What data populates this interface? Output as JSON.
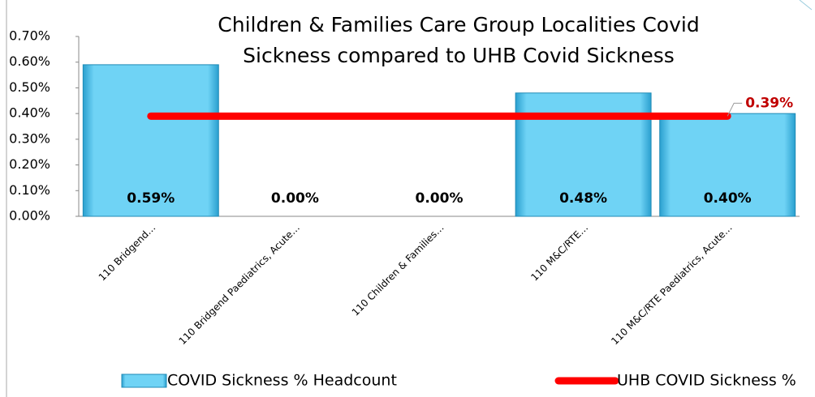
{
  "chart_data": {
    "type": "bar",
    "title": [
      "Children & Families Care Group Localities Covid",
      "Sickness compared to UHB Covid Sickness"
    ],
    "categories": [
      "110 Bridgend…",
      "110 Bridgend Paediatrics, Acute…",
      "110 Children & Families…",
      "110 M&C/RTE…",
      "110 M&C/RTE Paediatrics, Acute…"
    ],
    "series": [
      {
        "name": "COVID Sickness % Headcount",
        "color": "#5bc8ef",
        "values": [
          0.59,
          0,
          0,
          0.48,
          0.4
        ],
        "value_labels": [
          "0.59%",
          "0.00%",
          "0.00%",
          "0.48%",
          "0.40%"
        ]
      },
      {
        "name": "UHB COVID Sickness %",
        "color": "#ff0000",
        "type": "line",
        "values": [
          0.39,
          0.39,
          0.39,
          0.39,
          0.39
        ],
        "value_labels": [
          null,
          null,
          null,
          null,
          "0.39%"
        ]
      }
    ],
    "ylim": [
      0,
      0.7
    ],
    "yticks": [
      {
        "value": 0,
        "label": "0.00%"
      },
      {
        "value": 0.1,
        "label": "0.10%"
      },
      {
        "value": 0.2,
        "label": "0.20%"
      },
      {
        "value": 0.3,
        "label": "0.30%"
      },
      {
        "value": 0.4,
        "label": "0.40%"
      },
      {
        "value": 0.5,
        "label": "0.50%"
      },
      {
        "value": 0.6,
        "label": "0.60%"
      },
      {
        "value": 0.7,
        "label": "0.70%"
      }
    ],
    "legend": "bottom"
  }
}
